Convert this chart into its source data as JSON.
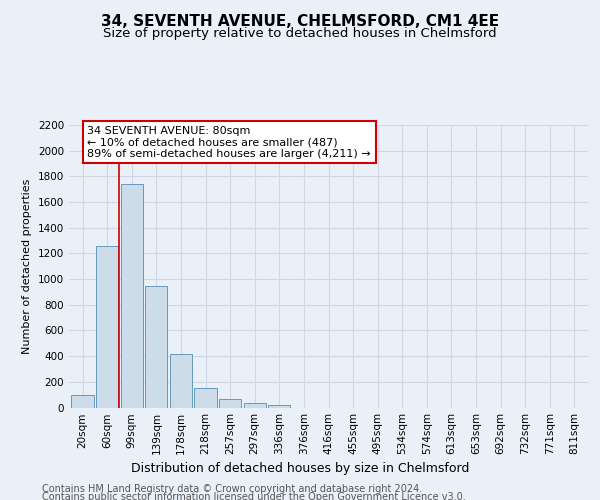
{
  "title1": "34, SEVENTH AVENUE, CHELMSFORD, CM1 4EE",
  "title2": "Size of property relative to detached houses in Chelmsford",
  "xlabel": "Distribution of detached houses by size in Chelmsford",
  "ylabel": "Number of detached properties",
  "categories": [
    "20sqm",
    "60sqm",
    "99sqm",
    "139sqm",
    "178sqm",
    "218sqm",
    "257sqm",
    "297sqm",
    "336sqm",
    "376sqm",
    "416sqm",
    "455sqm",
    "495sqm",
    "534sqm",
    "574sqm",
    "613sqm",
    "653sqm",
    "692sqm",
    "732sqm",
    "771sqm",
    "811sqm"
  ],
  "values": [
    100,
    1260,
    1740,
    950,
    415,
    155,
    70,
    38,
    20,
    0,
    0,
    0,
    0,
    0,
    0,
    0,
    0,
    0,
    0,
    0,
    0
  ],
  "bar_color": "#ccdce8",
  "bar_edge_color": "#6699bb",
  "vline_x": 1.5,
  "vline_color": "#cc0000",
  "annotation_text": "34 SEVENTH AVENUE: 80sqm\n← 10% of detached houses are smaller (487)\n89% of semi-detached houses are larger (4,211) →",
  "annotation_box_facecolor": "#ffffff",
  "annotation_box_edgecolor": "#cc0000",
  "ylim_max": 2200,
  "yticks": [
    0,
    200,
    400,
    600,
    800,
    1000,
    1200,
    1400,
    1600,
    1800,
    2000,
    2200
  ],
  "bg_color": "#eaf0f8",
  "grid_color": "#d0d8e8",
  "footer1": "Contains HM Land Registry data © Crown copyright and database right 2024.",
  "footer2": "Contains public sector information licensed under the Open Government Licence v3.0.",
  "title1_fontsize": 11,
  "title2_fontsize": 9.5,
  "xlabel_fontsize": 9,
  "ylabel_fontsize": 8,
  "tick_fontsize": 7.5,
  "footer_fontsize": 7,
  "annot_fontsize": 8
}
